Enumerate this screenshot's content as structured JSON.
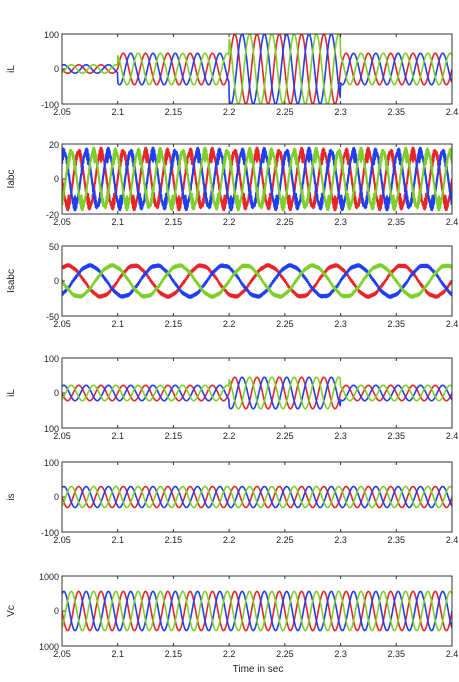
{
  "chart_data": {
    "type": "line",
    "xlabel": "Time in sec",
    "xlim": [
      2.05,
      2.4
    ],
    "x_tick_labels": [
      "2.05",
      "2.1",
      "2.15",
      "2.2",
      "2.25",
      "2.3",
      "2.35",
      "2.4"
    ],
    "colors": {
      "phase_a": "#e8262a",
      "phase_b": "#1f3ff2",
      "phase_c": "#7fcf2a"
    },
    "panels": [
      {
        "ylabel": "iL",
        "ylim": [
          -100,
          100
        ],
        "y_tick_labels": [
          "100",
          "0",
          "-100"
        ],
        "waveform": "three-phase sinusoid (50 Hz)",
        "amplitude_segments": [
          {
            "x_start": 2.05,
            "x_end": 2.1,
            "amplitude": 12
          },
          {
            "x_start": 2.1,
            "x_end": 2.2,
            "amplitude": 45
          },
          {
            "x_start": 2.2,
            "x_end": 2.3,
            "amplitude": 100
          },
          {
            "x_start": 2.3,
            "x_end": 2.4,
            "amplitude": 45
          }
        ]
      },
      {
        "ylabel": "Iabc",
        "ylim": [
          -20,
          20
        ],
        "y_tick_labels": [
          "20",
          "0",
          "-20"
        ],
        "waveform": "three-phase high-ripple current (50 Hz)",
        "amplitude_segments": [
          {
            "x_start": 2.05,
            "x_end": 2.4,
            "amplitude": 18
          }
        ]
      },
      {
        "ylabel": "Isabc",
        "ylim": [
          -50,
          50
        ],
        "y_tick_labels": [
          "50",
          "0",
          "-50"
        ],
        "waveform": "three-phase sinusoid (16.7 Hz)",
        "amplitude_segments": [
          {
            "x_start": 2.05,
            "x_end": 2.4,
            "amplitude": 22
          }
        ]
      },
      {
        "ylabel": "iL",
        "ylim": [
          -100,
          100
        ],
        "y_tick_labels": [
          "100",
          "0",
          "100"
        ],
        "waveform": "three-phase sinusoid (50 Hz)",
        "amplitude_segments": [
          {
            "x_start": 2.05,
            "x_end": 2.2,
            "amplitude": 22
          },
          {
            "x_start": 2.2,
            "x_end": 2.3,
            "amplitude": 45
          },
          {
            "x_start": 2.3,
            "x_end": 2.4,
            "amplitude": 22
          }
        ]
      },
      {
        "ylabel": "is",
        "ylim": [
          -100,
          100
        ],
        "y_tick_labels": [
          "100",
          "0",
          "-100"
        ],
        "waveform": "three-phase sinusoid (50 Hz)",
        "amplitude_segments": [
          {
            "x_start": 2.05,
            "x_end": 2.4,
            "amplitude": 30
          }
        ]
      },
      {
        "ylabel": "Vc",
        "ylim": [
          -1000,
          1000
        ],
        "y_tick_labels": [
          "1000",
          "0",
          "1000"
        ],
        "waveform": "three-phase sinusoid (50 Hz)",
        "amplitude_segments": [
          {
            "x_start": 2.05,
            "x_end": 2.4,
            "amplitude": 560
          }
        ]
      }
    ]
  }
}
